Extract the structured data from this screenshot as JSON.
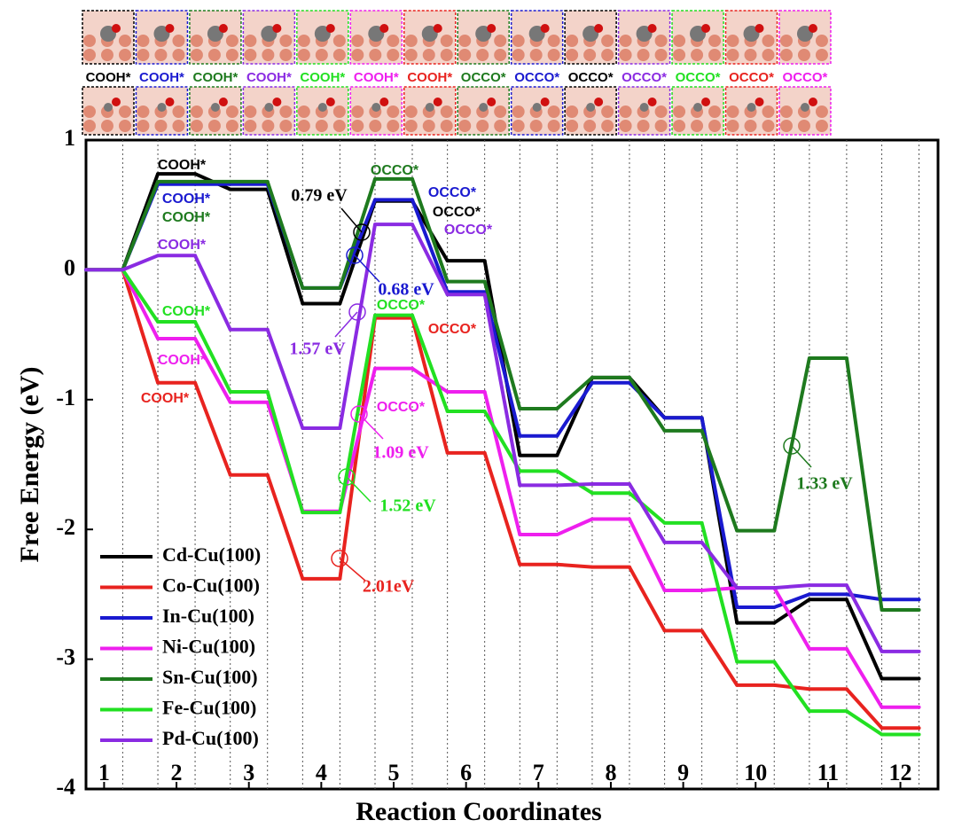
{
  "structures": [
    {
      "label": "COOH*",
      "color": "#000000"
    },
    {
      "label": "COOH*",
      "color": "#1a1ad0"
    },
    {
      "label": "COOH*",
      "color": "#1e7a1e"
    },
    {
      "label": "COOH*",
      "color": "#8a2be2"
    },
    {
      "label": "COOH*",
      "color": "#22e022"
    },
    {
      "label": "COOH*",
      "color": "#ee1fee"
    },
    {
      "label": "COOH*",
      "color": "#e8231f"
    },
    {
      "label": "OCCO*",
      "color": "#1e7a1e"
    },
    {
      "label": "OCCO*",
      "color": "#1a1ad0"
    },
    {
      "label": "OCCO*",
      "color": "#000000"
    },
    {
      "label": "OCCO*",
      "color": "#8a2be2"
    },
    {
      "label": "OCCO*",
      "color": "#22e022"
    },
    {
      "label": "OCCO*",
      "color": "#e8231f"
    },
    {
      "label": "OCCO*",
      "color": "#ee1fee"
    }
  ],
  "chart_data": {
    "type": "line",
    "x_label": "Reaction Coordinates",
    "y_label": "Free Energy (eV)",
    "x": [
      1,
      2,
      3,
      4,
      5,
      6,
      7,
      8,
      9,
      10,
      11,
      12
    ],
    "xlim": [
      0.75,
      12.52
    ],
    "xticks": [
      1,
      2,
      3,
      4,
      5,
      6,
      7,
      8,
      9,
      10,
      11,
      12
    ],
    "ylim": [
      -4,
      1
    ],
    "yticks": [
      -4,
      -3,
      -2,
      -1,
      0,
      1
    ],
    "legend": "lower left",
    "series": [
      {
        "name": "Cd-Cu(100)",
        "color": "#000000",
        "values": [
          0,
          0.74,
          0.62,
          -0.26,
          0.53,
          0.07,
          -1.43,
          -0.83,
          -1.14,
          -2.72,
          -2.54,
          -3.15
        ]
      },
      {
        "name": "Co-Cu(100)",
        "color": "#e8231f",
        "values": [
          0,
          -0.87,
          -1.58,
          -2.38,
          -0.37,
          -1.41,
          -2.27,
          -2.29,
          -2.78,
          -3.2,
          -3.23,
          -3.53
        ]
      },
      {
        "name": "In-Cu(100)",
        "color": "#1a1ad0",
        "values": [
          0,
          0.66,
          0.66,
          -0.14,
          0.54,
          -0.17,
          -1.28,
          -0.87,
          -1.14,
          -2.6,
          -2.5,
          -2.54
        ]
      },
      {
        "name": "Ni-Cu(100)",
        "color": "#ee1fee",
        "values": [
          0,
          -0.53,
          -1.02,
          -1.86,
          -0.76,
          -0.94,
          -2.04,
          -1.92,
          -2.47,
          -2.45,
          -2.92,
          -3.37
        ]
      },
      {
        "name": "Sn-Cu(100)",
        "color": "#1e7a1e",
        "values": [
          0,
          0.68,
          0.68,
          -0.14,
          0.7,
          -0.09,
          -1.07,
          -0.83,
          -1.24,
          -2.01,
          -0.68,
          -2.62
        ]
      },
      {
        "name": "Fe-Cu(100)",
        "color": "#22e022",
        "values": [
          0,
          -0.4,
          -0.94,
          -1.87,
          -0.35,
          -1.09,
          -1.55,
          -1.72,
          -1.95,
          -3.02,
          -3.4,
          -3.58
        ]
      },
      {
        "name": "Pd-Cu(100)",
        "color": "#8a2be2",
        "values": [
          0,
          0.11,
          -0.46,
          -1.22,
          0.35,
          -0.19,
          -1.66,
          -1.65,
          -2.1,
          -2.45,
          -2.43,
          -2.94
        ]
      }
    ],
    "annotations": [
      {
        "text": "COOH*",
        "color": "#000000"
      },
      {
        "text": "COOH*",
        "color": "#1a1ad0"
      },
      {
        "text": "COOH*",
        "color": "#1e7a1e"
      },
      {
        "text": "COOH*",
        "color": "#8a2be2"
      },
      {
        "text": "0.79 eV",
        "color": "#000000"
      },
      {
        "text": "OCCO*",
        "color": "#1e7a1e"
      },
      {
        "text": "OCCO*",
        "color": "#1a1ad0"
      },
      {
        "text": "OCCO*",
        "color": "#000000"
      },
      {
        "text": "OCCO*",
        "color": "#8a2be2"
      },
      {
        "text": "0.68 eV",
        "color": "#1a1ad0"
      },
      {
        "text": "COOH*",
        "color": "#22e022"
      },
      {
        "text": "OCCO*",
        "color": "#22e022"
      },
      {
        "text": "1.57 eV",
        "color": "#8a2be2"
      },
      {
        "text": "OCCO*",
        "color": "#e8231f"
      },
      {
        "text": "COOH*",
        "color": "#ee1fee"
      },
      {
        "text": "COOH*",
        "color": "#e8231f"
      },
      {
        "text": "OCCO*",
        "color": "#ee1fee"
      },
      {
        "text": "1.09 eV",
        "color": "#ee1fee"
      },
      {
        "text": "1.52 eV",
        "color": "#22e022"
      },
      {
        "text": "2.01eV",
        "color": "#e8231f"
      },
      {
        "text": "1.33 eV",
        "color": "#1e7a1e"
      }
    ]
  }
}
